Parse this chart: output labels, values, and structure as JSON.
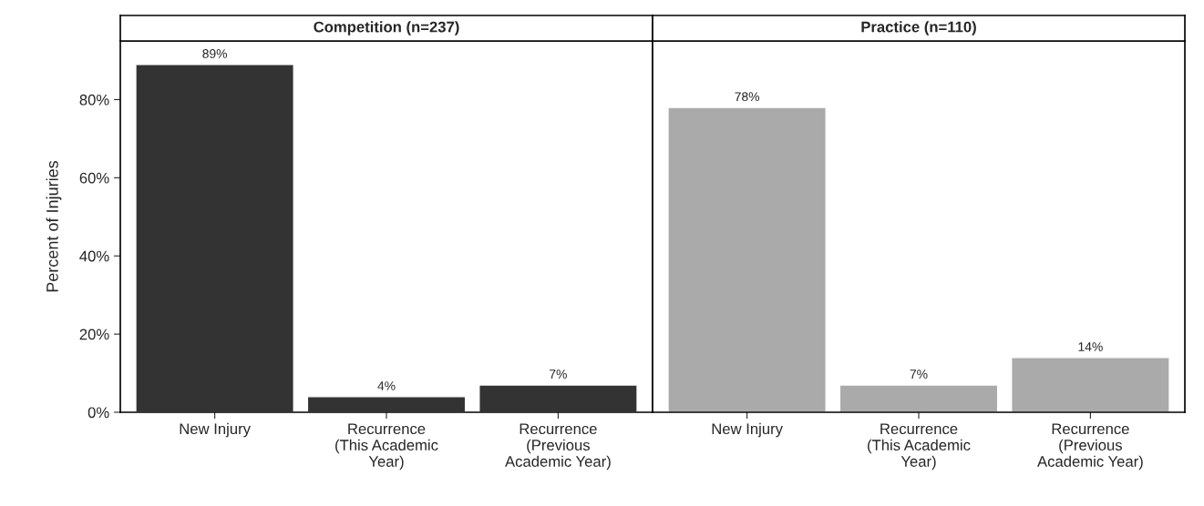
{
  "chart_data": [
    {
      "type": "bar",
      "title": "Competition (n=237)",
      "ylabel": "Percent of Injuries",
      "categories": [
        "New Injury",
        "Recurrence\n(This Academic\nYear)",
        "Recurrence\n(Previous\nAcademic Year)"
      ],
      "values": [
        89,
        4,
        7
      ],
      "value_labels": [
        "89%",
        "4%",
        "7%"
      ],
      "color": "#333333",
      "ylim": [
        0,
        95
      ],
      "yticks": [
        {
          "value": 0,
          "label": "0%"
        },
        {
          "value": 20,
          "label": "20%"
        },
        {
          "value": 40,
          "label": "40%"
        },
        {
          "value": 60,
          "label": "60%"
        },
        {
          "value": 80,
          "label": "80%"
        }
      ],
      "grid": false
    },
    {
      "type": "bar",
      "title": "Practice (n=110)",
      "categories": [
        "New Injury",
        "Recurrence\n(This Academic\nYear)",
        "Recurrence\n(Previous\nAcademic Year)"
      ],
      "values": [
        78,
        7,
        14
      ],
      "value_labels": [
        "78%",
        "7%",
        "14%"
      ],
      "color": "#aaaaaa",
      "ylim": [
        0,
        95
      ],
      "tick_labels": "x",
      "grid": false
    }
  ]
}
